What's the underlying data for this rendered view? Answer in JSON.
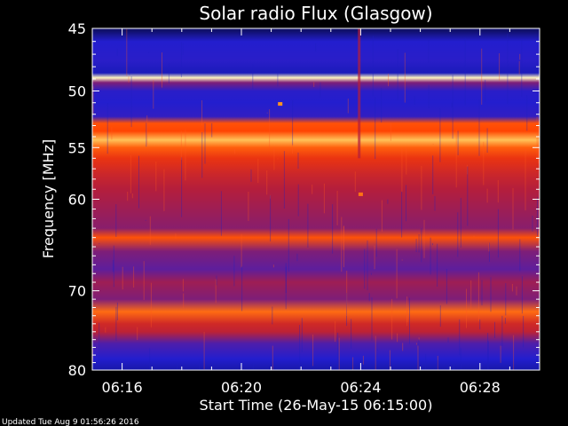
{
  "chart_data": {
    "type": "heatmap",
    "title": "Solar radio Flux (Glasgow)",
    "xlabel": "Start Time (26-May-15 06:15:00)",
    "ylabel": "Frequency [MHz]",
    "x_start": "06:15:00",
    "x_end": "06:30:00",
    "xlim_minutes_after_06": [
      15.0,
      30.0
    ],
    "ylim_mhz": [
      45,
      80
    ],
    "y_scale": "log",
    "x_ticks": [
      {
        "label": "06:16",
        "minute": 16
      },
      {
        "label": "06:20",
        "minute": 20
      },
      {
        "label": "06:24",
        "minute": 24
      },
      {
        "label": "06:28",
        "minute": 28
      }
    ],
    "y_ticks": [
      {
        "label": "45",
        "mhz": 45
      },
      {
        "label": "50",
        "mhz": 50
      },
      {
        "label": "55",
        "mhz": 55
      },
      {
        "label": "60",
        "mhz": 60
      },
      {
        "label": "70",
        "mhz": 70
      },
      {
        "label": "80",
        "mhz": 80
      }
    ],
    "colormap": [
      "#0a0a40",
      "#1e1ed2",
      "#5a1ea0",
      "#b41e3c",
      "#ff3c00",
      "#ffaa28",
      "#ffffd2"
    ],
    "intensity_profile_by_freq": [
      {
        "mhz": 45.2,
        "level": 0.05
      },
      {
        "mhz": 46.0,
        "level": 0.18
      },
      {
        "mhz": 47.5,
        "level": 0.2
      },
      {
        "mhz": 48.5,
        "level": 0.14
      },
      {
        "mhz": 48.9,
        "level": 0.98
      },
      {
        "mhz": 49.3,
        "level": 0.4
      },
      {
        "mhz": 50.0,
        "level": 0.2
      },
      {
        "mhz": 51.0,
        "level": 0.18
      },
      {
        "mhz": 52.2,
        "level": 0.22
      },
      {
        "mhz": 52.8,
        "level": 0.7
      },
      {
        "mhz": 53.5,
        "level": 0.68
      },
      {
        "mhz": 54.3,
        "level": 0.88
      },
      {
        "mhz": 55.0,
        "level": 0.72
      },
      {
        "mhz": 56.0,
        "level": 0.62
      },
      {
        "mhz": 57.5,
        "level": 0.55
      },
      {
        "mhz": 59.0,
        "level": 0.5
      },
      {
        "mhz": 61.0,
        "level": 0.46
      },
      {
        "mhz": 63.0,
        "level": 0.42
      },
      {
        "mhz": 64.0,
        "level": 0.7
      },
      {
        "mhz": 65.5,
        "level": 0.4
      },
      {
        "mhz": 67.5,
        "level": 0.34
      },
      {
        "mhz": 69.0,
        "level": 0.46
      },
      {
        "mhz": 71.0,
        "level": 0.4
      },
      {
        "mhz": 72.5,
        "level": 0.74
      },
      {
        "mhz": 74.0,
        "level": 0.56
      },
      {
        "mhz": 75.0,
        "level": 0.52
      },
      {
        "mhz": 76.5,
        "level": 0.3
      },
      {
        "mhz": 78.5,
        "level": 0.18
      },
      {
        "mhz": 80.0,
        "level": 0.12
      }
    ],
    "features": [
      {
        "kind": "spike",
        "minute": 23.95,
        "mhz_range": [
          45,
          56
        ],
        "level": 0.5
      },
      {
        "kind": "burst",
        "minute": 21.3,
        "mhz": 51.1,
        "level": 0.8
      },
      {
        "kind": "burst",
        "minute": 24.0,
        "mhz": 59.5,
        "level": 0.75
      }
    ]
  },
  "footer": {
    "updated_text": "Updated Tue Aug  9 01:56:26 2016"
  }
}
